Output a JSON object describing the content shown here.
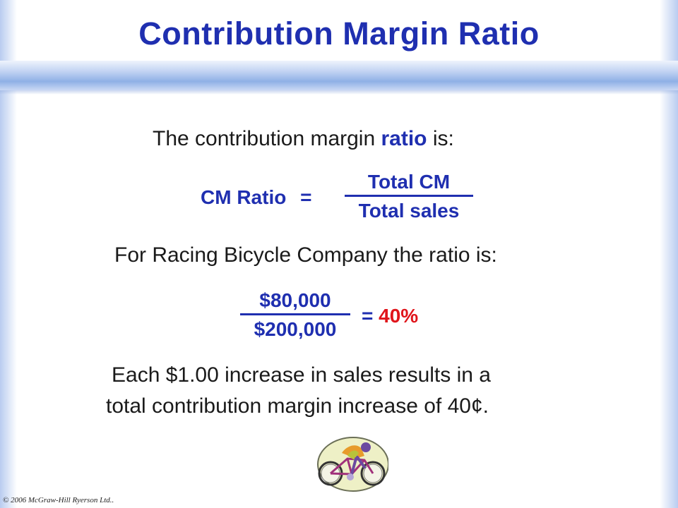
{
  "slide": {
    "title": "Contribution Margin Ratio",
    "intro": {
      "prefix": "The contribution margin ",
      "emphasis": "ratio",
      "suffix": " is:"
    },
    "formula": {
      "label": "CM Ratio",
      "equals": "=",
      "numerator": "Total CM",
      "denominator": "Total sales"
    },
    "example_intro": "For Racing Bicycle Company the ratio is:",
    "example": {
      "numerator": "$80,000",
      "denominator": "$200,000",
      "equals": "=",
      "result": "40%"
    },
    "conclusion": {
      "line1": "Each $1.00 increase in sales results in a",
      "line2": "total contribution margin increase of 40¢."
    },
    "copyright": "© 2006 McGraw-Hill Ryerson Ltd..",
    "clipart_icon": "cyclist-icon",
    "colors": {
      "title": "#1f2fb0",
      "accent": "#1f2fb0",
      "result": "#e0151b",
      "band": "#8fb0e6"
    }
  }
}
